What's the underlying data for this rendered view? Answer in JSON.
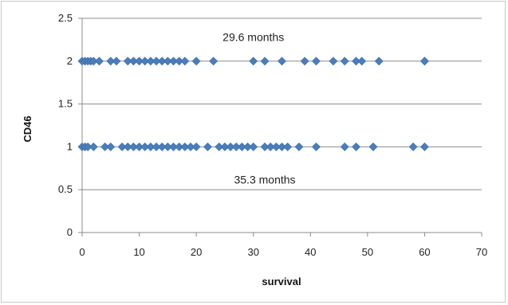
{
  "chart_data": {
    "type": "scatter",
    "title": "",
    "xlabel": "survival",
    "ylabel": "CD46",
    "xlim": [
      0,
      70
    ],
    "ylim": [
      0,
      2.5
    ],
    "x_ticks": [
      0,
      10,
      20,
      30,
      40,
      50,
      60,
      70
    ],
    "y_ticks": [
      "0",
      "0.5",
      "1",
      "1.5",
      "2",
      "2.5"
    ],
    "grid": "horizontal",
    "legend": "none",
    "marker_color": "#4a7ebb",
    "annotations": [
      {
        "text": "29.6 months",
        "x": 30,
        "y": 2.28
      },
      {
        "text": "35.3 months",
        "x": 32,
        "y": 0.62
      }
    ],
    "series": [
      {
        "x": [
          0,
          0.5,
          1,
          1.5,
          2,
          3,
          5,
          6,
          8,
          9,
          10,
          11,
          12,
          13,
          14,
          15,
          16,
          17,
          18,
          20,
          23,
          30,
          32,
          35,
          39,
          41,
          44,
          46,
          48,
          49,
          52,
          60,
          60
        ],
        "y": [
          2,
          2,
          2,
          2,
          2,
          2,
          2,
          2,
          2,
          2,
          2,
          2,
          2,
          2,
          2,
          2,
          2,
          2,
          2,
          2,
          2,
          2,
          2,
          2,
          2,
          2,
          2,
          2,
          2,
          2,
          2,
          2,
          2
        ]
      },
      {
        "x": [
          0,
          0.5,
          1,
          2,
          4,
          5,
          7,
          8,
          9,
          10,
          11,
          12,
          13,
          14,
          15,
          16,
          17,
          18,
          19,
          20,
          22,
          24,
          25,
          26,
          27,
          28,
          29,
          30,
          32,
          33,
          34,
          35,
          36,
          38,
          41,
          46,
          48,
          51,
          58,
          60
        ],
        "y": [
          1,
          1,
          1,
          1,
          1,
          1,
          1,
          1,
          1,
          1,
          1,
          1,
          1,
          1,
          1,
          1,
          1,
          1,
          1,
          1,
          1,
          1,
          1,
          1,
          1,
          1,
          1,
          1,
          1,
          1,
          1,
          1,
          1,
          1,
          1,
          1,
          1,
          1,
          1,
          1
        ]
      }
    ]
  }
}
